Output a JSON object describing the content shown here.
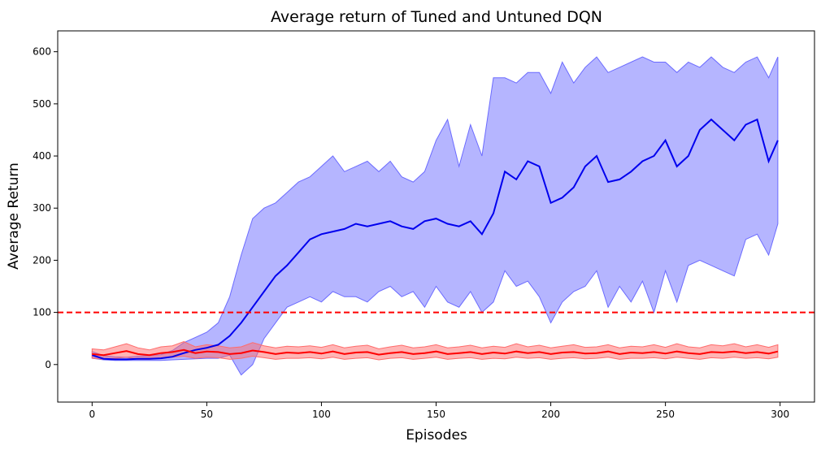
{
  "chart_data": {
    "type": "line",
    "title": "Average return of Tuned and Untuned DQN",
    "xlabel": "Episodes",
    "ylabel": "Average Return",
    "xlim": [
      -15,
      315
    ],
    "ylim": [
      -72,
      640
    ],
    "xticks": [
      0,
      50,
      100,
      150,
      200,
      250,
      300
    ],
    "yticks": [
      0,
      100,
      200,
      300,
      400,
      500,
      600
    ],
    "grid": false,
    "legend": "none",
    "threshold": {
      "value": 100,
      "color": "#ff0000",
      "style": "dashed"
    },
    "series": [
      {
        "color": "#0000ee",
        "band_color": "#6b6bff",
        "x": [
          0,
          5,
          10,
          15,
          20,
          25,
          30,
          35,
          40,
          45,
          50,
          55,
          60,
          65,
          70,
          75,
          80,
          85,
          90,
          95,
          100,
          105,
          110,
          115,
          120,
          125,
          130,
          135,
          140,
          145,
          150,
          155,
          160,
          165,
          170,
          175,
          180,
          185,
          190,
          195,
          200,
          205,
          210,
          215,
          220,
          225,
          230,
          235,
          240,
          245,
          250,
          255,
          260,
          265,
          270,
          275,
          280,
          285,
          290,
          295,
          299
        ],
        "mean": [
          18,
          11,
          10,
          10,
          11,
          11,
          12,
          15,
          22,
          28,
          32,
          38,
          55,
          80,
          110,
          140,
          170,
          190,
          215,
          240,
          250,
          255,
          260,
          270,
          265,
          270,
          275,
          265,
          260,
          275,
          280,
          270,
          265,
          275,
          250,
          290,
          370,
          355,
          390,
          380,
          310,
          320,
          340,
          380,
          400,
          350,
          355,
          370,
          390,
          400,
          430,
          380,
          400,
          450,
          470,
          450,
          430,
          460,
          470,
          390,
          430
        ],
        "upper": [
          25,
          17,
          15,
          14,
          16,
          17,
          19,
          27,
          42,
          52,
          62,
          80,
          130,
          210,
          280,
          300,
          310,
          330,
          350,
          360,
          380,
          400,
          370,
          380,
          390,
          370,
          390,
          360,
          350,
          370,
          430,
          470,
          380,
          460,
          400,
          550,
          550,
          540,
          560,
          560,
          520,
          580,
          540,
          570,
          590,
          560,
          570,
          580,
          590,
          580,
          580,
          560,
          580,
          570,
          590,
          570,
          560,
          580,
          590,
          550,
          590
        ],
        "lower": [
          12,
          9,
          8,
          8,
          8,
          8,
          8,
          9,
          10,
          11,
          12,
          12,
          18,
          -20,
          0,
          50,
          80,
          110,
          120,
          130,
          120,
          140,
          130,
          130,
          120,
          140,
          150,
          130,
          140,
          110,
          150,
          120,
          110,
          140,
          100,
          120,
          180,
          150,
          160,
          130,
          80,
          120,
          140,
          150,
          180,
          110,
          150,
          120,
          160,
          100,
          180,
          120,
          190,
          200,
          190,
          180,
          170,
          240,
          250,
          210,
          270
        ]
      },
      {
        "color": "#ff0000",
        "band_color": "#ff6b6b",
        "x": [
          0,
          5,
          10,
          15,
          20,
          25,
          30,
          35,
          40,
          45,
          50,
          55,
          60,
          65,
          70,
          75,
          80,
          85,
          90,
          95,
          100,
          105,
          110,
          115,
          120,
          125,
          130,
          135,
          140,
          145,
          150,
          155,
          160,
          165,
          170,
          175,
          180,
          185,
          190,
          195,
          200,
          205,
          210,
          215,
          220,
          225,
          230,
          235,
          240,
          245,
          250,
          255,
          260,
          265,
          270,
          275,
          280,
          285,
          290,
          295,
          299
        ],
        "mean": [
          20,
          18,
          22,
          26,
          20,
          18,
          22,
          24,
          28,
          22,
          25,
          24,
          20,
          22,
          27,
          24,
          20,
          23,
          22,
          24,
          21,
          25,
          20,
          23,
          24,
          19,
          22,
          24,
          20,
          22,
          25,
          20,
          22,
          24,
          20,
          23,
          21,
          25,
          22,
          24,
          20,
          23,
          24,
          21,
          22,
          25,
          20,
          23,
          22,
          24,
          21,
          25,
          22,
          20,
          24,
          23,
          25,
          22,
          24,
          21,
          25
        ],
        "upper": [
          30,
          28,
          34,
          40,
          32,
          28,
          34,
          36,
          44,
          34,
          38,
          36,
          32,
          34,
          42,
          36,
          32,
          35,
          34,
          36,
          33,
          38,
          32,
          35,
          37,
          30,
          34,
          37,
          32,
          34,
          38,
          32,
          34,
          37,
          32,
          35,
          33,
          40,
          34,
          37,
          32,
          35,
          38,
          33,
          34,
          38,
          32,
          35,
          34,
          38,
          33,
          40,
          34,
          32,
          38,
          36,
          40,
          34,
          38,
          33,
          38
        ],
        "lower": [
          12,
          10,
          12,
          14,
          10,
          10,
          12,
          14,
          16,
          12,
          14,
          13,
          10,
          12,
          16,
          13,
          10,
          12,
          12,
          13,
          11,
          14,
          10,
          12,
          13,
          9,
          12,
          13,
          10,
          12,
          14,
          10,
          12,
          13,
          10,
          12,
          11,
          14,
          12,
          13,
          10,
          12,
          13,
          11,
          12,
          14,
          10,
          12,
          12,
          13,
          11,
          14,
          12,
          10,
          13,
          12,
          14,
          12,
          13,
          11,
          14
        ]
      }
    ]
  }
}
